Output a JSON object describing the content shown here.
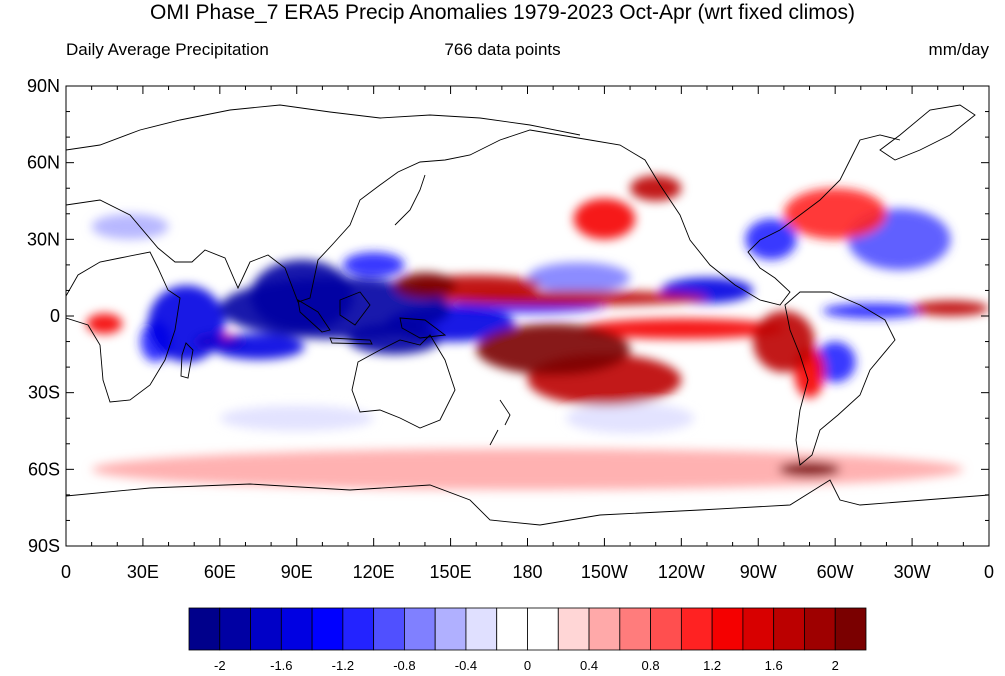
{
  "title": "OMI Phase_7 ERA5 Precip Anomalies 1979-2023 Oct-Apr (wrt fixed climos)",
  "subtitle_left": "Daily Average Precipitation",
  "subtitle_center": "766 data points",
  "subtitle_right": "mm/day",
  "map": {
    "lon_range": [
      0,
      360
    ],
    "lat_range": [
      -90,
      90
    ],
    "lat_ticks": [
      {
        "lat": 90,
        "label": "90N"
      },
      {
        "lat": 60,
        "label": "60N"
      },
      {
        "lat": 30,
        "label": "30N"
      },
      {
        "lat": 0,
        "label": "0"
      },
      {
        "lat": -30,
        "label": "30S"
      },
      {
        "lat": -60,
        "label": "60S"
      },
      {
        "lat": -90,
        "label": "90S"
      }
    ],
    "lon_ticks": [
      {
        "lon": 0,
        "label": "0"
      },
      {
        "lon": 30,
        "label": "30E"
      },
      {
        "lon": 60,
        "label": "60E"
      },
      {
        "lon": 90,
        "label": "90E"
      },
      {
        "lon": 120,
        "label": "120E"
      },
      {
        "lon": 150,
        "label": "150E"
      },
      {
        "lon": 180,
        "label": "180"
      },
      {
        "lon": 210,
        "label": "150W"
      },
      {
        "lon": 240,
        "label": "120W"
      },
      {
        "lon": 270,
        "label": "90W"
      },
      {
        "lon": 300,
        "label": "60W"
      },
      {
        "lon": 330,
        "label": "30W"
      },
      {
        "lon": 360,
        "label": "0"
      }
    ],
    "anomalies": [
      {
        "lon": 105,
        "lat": 3,
        "rx": 45,
        "ry": 12,
        "v": -2.0
      },
      {
        "lon": 92,
        "lat": 8,
        "rx": 20,
        "ry": 14,
        "v": -2.0
      },
      {
        "lon": 150,
        "lat": -3,
        "rx": 25,
        "ry": 7,
        "v": -1.6
      },
      {
        "lon": 180,
        "lat": 4,
        "rx": 30,
        "ry": 3,
        "v": -1.2
      },
      {
        "lon": 128,
        "lat": -9,
        "rx": 18,
        "ry": 6,
        "v": -2.0
      },
      {
        "lon": 75,
        "lat": -12,
        "rx": 18,
        "ry": 5,
        "v": -1.6
      },
      {
        "lon": 47,
        "lat": -3,
        "rx": 15,
        "ry": 15,
        "v": -1.6
      },
      {
        "lon": 35,
        "lat": -10,
        "rx": 6,
        "ry": 8,
        "v": -1.2
      },
      {
        "lon": 120,
        "lat": 20,
        "rx": 12,
        "ry": 5,
        "v": -1.2
      },
      {
        "lon": 250,
        "lat": 10,
        "rx": 18,
        "ry": 5,
        "v": -1.6
      },
      {
        "lon": 200,
        "lat": 15,
        "rx": 20,
        "ry": 6,
        "v": -0.8
      },
      {
        "lon": 300,
        "lat": -18,
        "rx": 8,
        "ry": 8,
        "v": -1.2
      },
      {
        "lon": 315,
        "lat": 2,
        "rx": 20,
        "ry": 3,
        "v": -1.2
      },
      {
        "lon": 275,
        "lat": 30,
        "rx": 10,
        "ry": 8,
        "v": -1.2
      },
      {
        "lon": 325,
        "lat": 30,
        "rx": 20,
        "ry": 12,
        "v": -1.0
      },
      {
        "lon": 25,
        "lat": 35,
        "rx": 15,
        "ry": 5,
        "v": -0.6
      },
      {
        "lon": 220,
        "lat": -40,
        "rx": 25,
        "ry": 6,
        "v": -0.4
      },
      {
        "lon": 90,
        "lat": -40,
        "rx": 30,
        "ry": 5,
        "v": -0.4
      },
      {
        "lon": 160,
        "lat": 12,
        "rx": 25,
        "ry": 4,
        "v": 1.6
      },
      {
        "lon": 195,
        "lat": 7,
        "rx": 55,
        "ry": 3,
        "v": 1.6
      },
      {
        "lon": 140,
        "lat": 12,
        "rx": 12,
        "ry": 5,
        "v": 2.0
      },
      {
        "lon": 190,
        "lat": -13,
        "rx": 30,
        "ry": 10,
        "v": 2.0
      },
      {
        "lon": 210,
        "lat": -25,
        "rx": 30,
        "ry": 10,
        "v": 1.6
      },
      {
        "lon": 240,
        "lat": -5,
        "rx": 40,
        "ry": 4,
        "v": 1.2
      },
      {
        "lon": 210,
        "lat": 38,
        "rx": 12,
        "ry": 8,
        "v": 1.2
      },
      {
        "lon": 230,
        "lat": 50,
        "rx": 10,
        "ry": 5,
        "v": 1.6
      },
      {
        "lon": 300,
        "lat": 40,
        "rx": 20,
        "ry": 10,
        "v": 1.0
      },
      {
        "lon": 280,
        "lat": -10,
        "rx": 12,
        "ry": 12,
        "v": 1.6
      },
      {
        "lon": 290,
        "lat": -22,
        "rx": 6,
        "ry": 10,
        "v": 1.2
      },
      {
        "lon": 345,
        "lat": 3,
        "rx": 15,
        "ry": 3,
        "v": 1.6
      },
      {
        "lon": 290,
        "lat": -60,
        "rx": 12,
        "ry": 3,
        "v": 2.0
      },
      {
        "lon": 60,
        "lat": -10,
        "rx": 10,
        "ry": 3,
        "v": 1.2
      },
      {
        "lon": 15,
        "lat": -3,
        "rx": 7,
        "ry": 4,
        "v": 1.2
      },
      {
        "lon": 180,
        "lat": -60,
        "rx": 170,
        "ry": 8,
        "v": 0.4
      }
    ]
  },
  "colorbar": {
    "levels": [
      -2,
      -1.8,
      -1.6,
      -1.4,
      -1.2,
      -1,
      -0.8,
      -0.6,
      -0.4,
      -0.2,
      0,
      0.2,
      0.4,
      0.6,
      0.8,
      1,
      1.2,
      1.4,
      1.6,
      1.8,
      2
    ],
    "colors": [
      "#00008b",
      "#0000a3",
      "#0000c7",
      "#0000e2",
      "#0000ff",
      "#2323ff",
      "#5050ff",
      "#8080ff",
      "#b0b0ff",
      "#e0e0ff",
      "#ffffff",
      "#ffffff",
      "#ffd6d6",
      "#ffa9a9",
      "#ff7c7c",
      "#ff4f4f",
      "#ff2222",
      "#f50000",
      "#d80000",
      "#bb0000",
      "#9e0000",
      "#7a0000"
    ],
    "tick_labels": [
      {
        "value": -2,
        "label": "-2"
      },
      {
        "value": -1.6,
        "label": "-1.6"
      },
      {
        "value": -1.2,
        "label": "-1.2"
      },
      {
        "value": -0.8,
        "label": "-0.8"
      },
      {
        "value": -0.4,
        "label": "-0.4"
      },
      {
        "value": 0,
        "label": "0"
      },
      {
        "value": 0.4,
        "label": "0.4"
      },
      {
        "value": 0.8,
        "label": "0.8"
      },
      {
        "value": 1.2,
        "label": "1.2"
      },
      {
        "value": 1.6,
        "label": "1.6"
      },
      {
        "value": 2,
        "label": "2"
      }
    ]
  }
}
